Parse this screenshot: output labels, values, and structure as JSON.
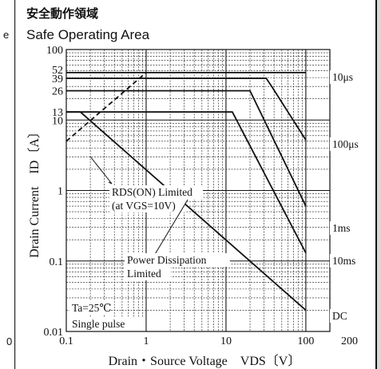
{
  "left_strip": {
    "fragment_top": "e",
    "fragment_bottom": "0"
  },
  "header": {
    "title_jp": "安全動作領域",
    "title_en": "Safe Operating Area"
  },
  "chart_data": {
    "type": "line",
    "xscale": "log",
    "yscale": "log",
    "xlim": [
      0.1,
      200
    ],
    "ylim": [
      0.01,
      100
    ],
    "xlabel": "Drain・Source Voltage　VDS〔V〕",
    "ylabel": "Drain Current　ID〔A〕",
    "x_ticks": [
      "0.1",
      "1",
      "10",
      "100",
      "200"
    ],
    "y_ticks": [
      "0.01",
      "0.1",
      "1",
      "10",
      "13",
      "26",
      "39",
      "52",
      "100"
    ],
    "grid": true,
    "series": [
      {
        "name": "10μs",
        "x": [
          0.1,
          100
        ],
        "y": [
          47,
          47
        ]
      },
      {
        "name": "100μs",
        "x": [
          0.1,
          32,
          38,
          100
        ],
        "y": [
          39,
          39,
          29,
          5.2
        ]
      },
      {
        "name": "1ms",
        "x": [
          0.1,
          20,
          100
        ],
        "y": [
          26,
          26,
          0.6
        ]
      },
      {
        "name": "10ms",
        "x": [
          0.1,
          12,
          100
        ],
        "y": [
          13,
          13,
          0.13
        ]
      },
      {
        "name": "DC",
        "x": [
          0.1,
          0.15,
          100
        ],
        "y": [
          13,
          13,
          0.02
        ]
      },
      {
        "name": "RDS(ON) Limited",
        "x": [
          0.1,
          1
        ],
        "y": [
          5,
          47
        ],
        "style": "dashed"
      }
    ],
    "annotations": {
      "rds_label_line1": "RDS(ON) Limited",
      "rds_label_line2": "(at VGS=10V)",
      "power_label_line1": "Power Dissipation",
      "power_label_line2": "Limited",
      "ta_label": "Ta=25℃",
      "pulse_label": "Single pulse",
      "lbl_10us": "10μs",
      "lbl_100us": "100μs",
      "lbl_1ms": "1ms",
      "lbl_10ms": "10ms",
      "lbl_dc": "DC"
    }
  }
}
